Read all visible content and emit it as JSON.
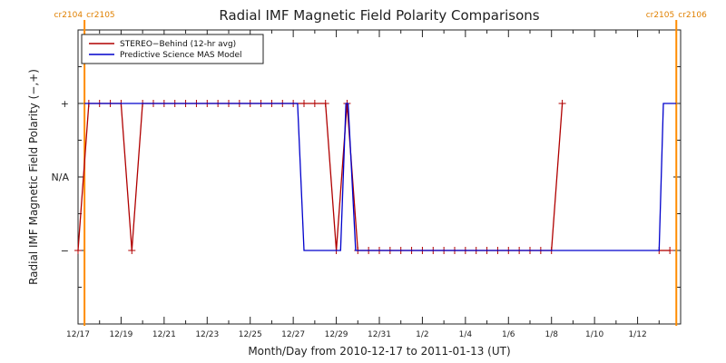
{
  "chart_data": {
    "type": "line",
    "title": "Radial IMF Magnetic Field Polarity Comparisons",
    "xlabel": "Month/Day from 2010-12-17 to 2011-01-13 (UT)",
    "ylabel": "Radial IMF Magnetic Field Polarity (−,+)",
    "xlim": [
      "2010-12-17",
      "2011-01-14"
    ],
    "x_unit": "days from 2010-12-17",
    "xlim_days": [
      0,
      28
    ],
    "ylim": [
      -2,
      2
    ],
    "yticks": [
      {
        "value": 1,
        "label": "+"
      },
      {
        "value": 0,
        "label": "N/A"
      },
      {
        "value": -1,
        "label": "−"
      }
    ],
    "xticks": [
      {
        "day": 0,
        "label": "12/17"
      },
      {
        "day": 2,
        "label": "12/19"
      },
      {
        "day": 4,
        "label": "12/21"
      },
      {
        "day": 6,
        "label": "12/23"
      },
      {
        "day": 8,
        "label": "12/25"
      },
      {
        "day": 10,
        "label": "12/27"
      },
      {
        "day": 12,
        "label": "12/29"
      },
      {
        "day": 14,
        "label": "12/31"
      },
      {
        "day": 16,
        "label": "1/2"
      },
      {
        "day": 18,
        "label": "1/4"
      },
      {
        "day": 20,
        "label": "1/6"
      },
      {
        "day": 22,
        "label": "1/8"
      },
      {
        "day": 24,
        "label": "1/10"
      },
      {
        "day": 26,
        "label": "1/12"
      }
    ],
    "carrington_markers": [
      {
        "day": 0.3,
        "left_label": "cr2104",
        "right_label": "cr2105"
      },
      {
        "day": 27.8,
        "left_label": "cr2105",
        "right_label": "cr2106"
      }
    ],
    "grid": false,
    "legend_position": "top-left",
    "series": [
      {
        "name": "STEREO−Behind (12-hr avg)",
        "color": "#b00000",
        "marker": "+",
        "points": [
          [
            0.0,
            -1
          ],
          [
            0.5,
            1
          ],
          [
            1.0,
            1
          ],
          [
            1.5,
            1
          ],
          [
            2.0,
            1
          ],
          [
            2.5,
            -1
          ],
          [
            3.0,
            1
          ],
          [
            3.5,
            1
          ],
          [
            4.0,
            1
          ],
          [
            4.5,
            1
          ],
          [
            5.0,
            1
          ],
          [
            5.5,
            1
          ],
          [
            6.0,
            1
          ],
          [
            6.5,
            1
          ],
          [
            7.0,
            1
          ],
          [
            7.5,
            1
          ],
          [
            8.0,
            1
          ],
          [
            8.5,
            1
          ],
          [
            9.0,
            1
          ],
          [
            9.5,
            1
          ],
          [
            10.0,
            1
          ],
          [
            10.5,
            1
          ],
          [
            11.0,
            1
          ],
          [
            11.5,
            1
          ],
          [
            12.0,
            -1
          ],
          [
            12.5,
            1
          ],
          [
            13.0,
            -1
          ],
          [
            13.5,
            -1
          ],
          [
            14.0,
            -1
          ],
          [
            14.5,
            -1
          ],
          [
            15.0,
            -1
          ],
          [
            15.5,
            -1
          ],
          [
            16.0,
            -1
          ],
          [
            16.5,
            -1
          ],
          [
            17.0,
            -1
          ],
          [
            17.5,
            -1
          ],
          [
            18.0,
            -1
          ],
          [
            18.5,
            -1
          ],
          [
            19.0,
            -1
          ],
          [
            19.5,
            -1
          ],
          [
            20.0,
            -1
          ],
          [
            20.5,
            -1
          ],
          [
            21.0,
            -1
          ],
          [
            21.5,
            -1
          ],
          [
            22.0,
            -1
          ],
          [
            22.5,
            1
          ],
          [
            27.0,
            -1
          ],
          [
            27.5,
            -1
          ]
        ]
      },
      {
        "name": "Predictive Science MAS Model",
        "color": "#0000cc",
        "marker": "none",
        "points": [
          [
            0.3,
            1
          ],
          [
            10.2,
            1
          ],
          [
            10.5,
            -1
          ],
          [
            12.2,
            -1
          ],
          [
            12.45,
            1
          ],
          [
            12.55,
            1
          ],
          [
            12.9,
            -1
          ],
          [
            27.0,
            -1
          ],
          [
            27.2,
            1
          ],
          [
            27.8,
            1
          ]
        ]
      }
    ]
  }
}
